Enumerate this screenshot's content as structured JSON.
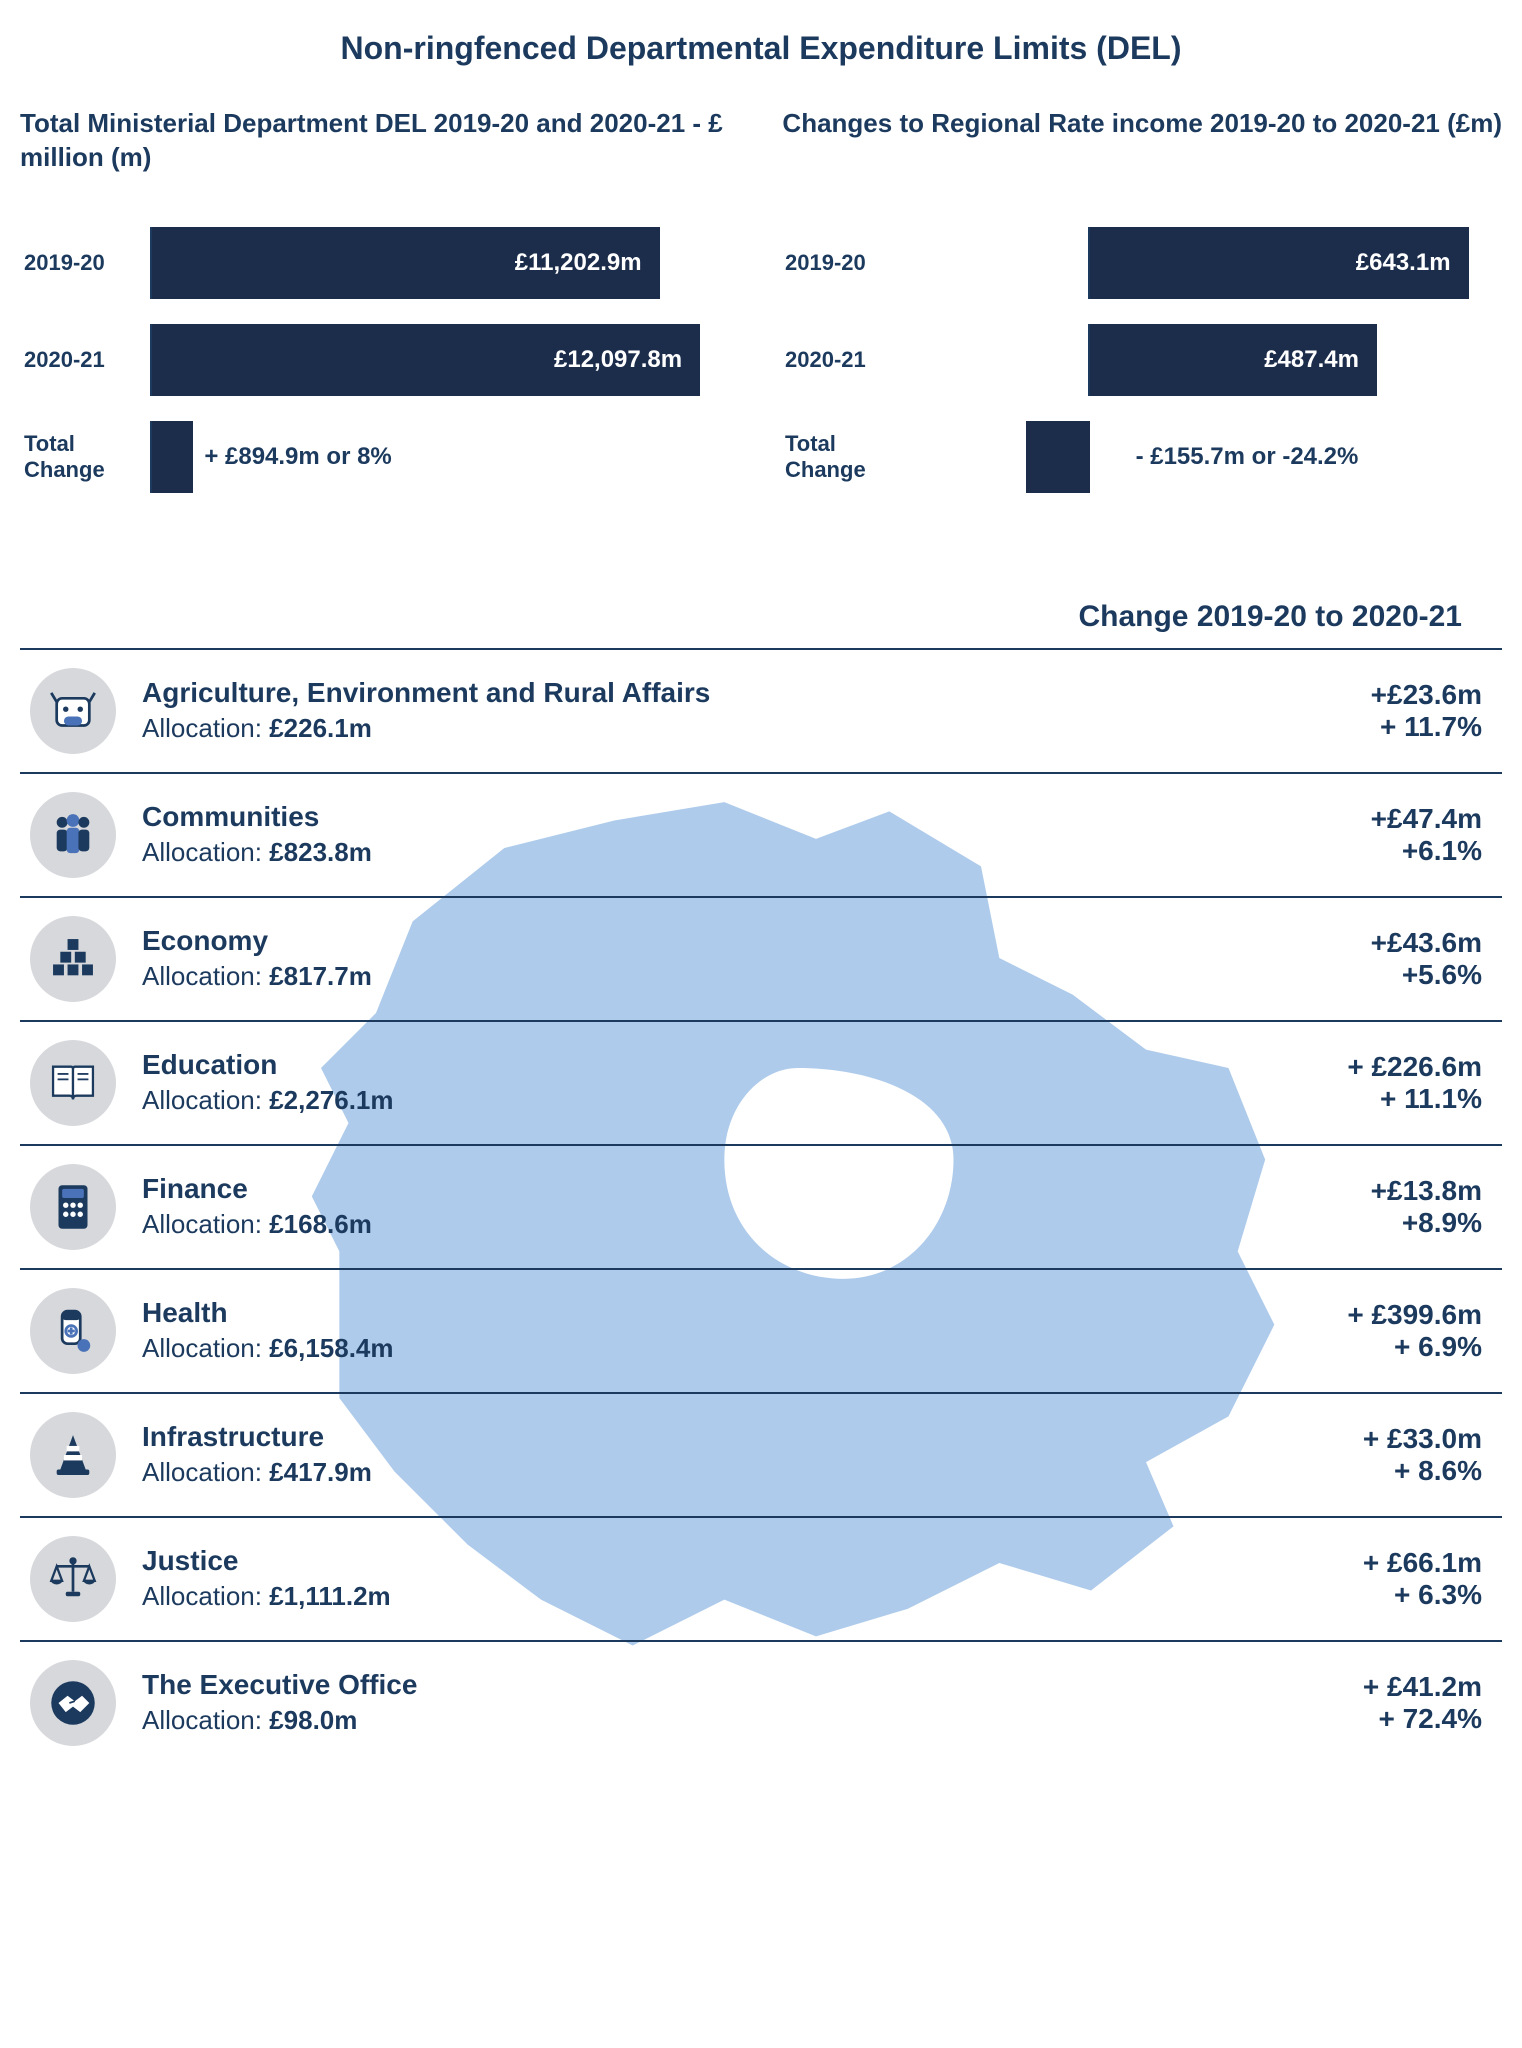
{
  "colors": {
    "text": "#1c3a5e",
    "bar_fill": "#1c2d4c",
    "icon_bg": "#d6d8db",
    "map_fill": "#aecbeb",
    "background": "#ffffff",
    "rule": "#1c3a5e"
  },
  "title": "Non-ringfenced Departmental Expenditure Limits (DEL)",
  "charts": {
    "left": {
      "title": "Total Ministerial Department DEL 2019-20 and 2020-21 - £ million (m)",
      "max_value": 13000,
      "rows": [
        {
          "label": "2019-20",
          "value": 11202.9,
          "value_label": "£11,202.9m"
        },
        {
          "label": "2020-21",
          "value": 12097.8,
          "value_label": "£12,097.8m"
        }
      ],
      "change": {
        "label": "Total Change",
        "bar_value": 894.9,
        "text": "+ £894.9m or 8%",
        "sign": "positive"
      }
    },
    "right": {
      "title": "Changes to Regional Rate income 2019-20 to 2020-21 (£m)",
      "max_value": 700,
      "rows": [
        {
          "label": "2019-20",
          "value": 643.1,
          "value_label": "£643.1m"
        },
        {
          "label": "2020-21",
          "value": 487.4,
          "value_label": "£487.4m"
        }
      ],
      "change": {
        "label": "Total Change",
        "bar_value": 155.7,
        "text": "- £155.7m or -24.2%",
        "sign": "negative"
      }
    }
  },
  "table": {
    "header": "Change 2019-20 to 2020-21",
    "alloc_prefix": "Allocation:",
    "rows": [
      {
        "icon": "cow",
        "name": "Agriculture, Environment and Rural Affairs",
        "allocation": "£226.1m",
        "change_m": "+£23.6m",
        "change_p": "+ 11.7%"
      },
      {
        "icon": "people",
        "name": "Communities",
        "allocation": "£823.8m",
        "change_m": "+£47.4m",
        "change_p": "+6.1%"
      },
      {
        "icon": "blocks",
        "name": "Economy",
        "allocation": "£817.7m",
        "change_m": "+£43.6m",
        "change_p": "+5.6%"
      },
      {
        "icon": "book",
        "name": "Education",
        "allocation": "£2,276.1m",
        "change_m": "+ £226.6m",
        "change_p": "+ 11.1%"
      },
      {
        "icon": "calculator",
        "name": "Finance",
        "allocation": "£168.6m",
        "change_m": "+£13.8m",
        "change_p": "+8.9%"
      },
      {
        "icon": "pill",
        "name": "Health",
        "allocation": "£6,158.4m",
        "change_m": "+ £399.6m",
        "change_p": "+ 6.9%"
      },
      {
        "icon": "cone",
        "name": "Infrastructure",
        "allocation": "£417.9m",
        "change_m": "+ £33.0m",
        "change_p": "+ 8.6%"
      },
      {
        "icon": "scales",
        "name": "Justice",
        "allocation": "£1,111.2m",
        "change_m": "+ £66.1m",
        "change_p": "+ 6.3%"
      },
      {
        "icon": "handshake",
        "name": "The Executive Office",
        "allocation": "£98.0m",
        "change_m": "+ £41.2m",
        "change_p": "+ 72.4%"
      }
    ]
  },
  "typography": {
    "title_fontsize": 32,
    "chart_title_fontsize": 26,
    "bar_label_fontsize": 22,
    "bar_value_fontsize": 24,
    "table_header_fontsize": 30,
    "dept_name_fontsize": 28,
    "dept_alloc_fontsize": 26
  }
}
